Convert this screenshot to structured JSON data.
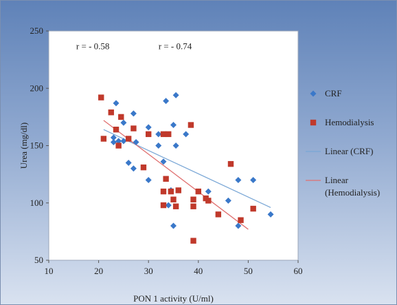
{
  "chart_data": {
    "type": "scatter",
    "xlabel": "PON 1 activity (U/ml)",
    "ylabel": "Urea  (mg/dl)",
    "xlim": [
      10,
      60
    ],
    "ylim": [
      50,
      250
    ],
    "xticks": [
      "10",
      "20",
      "30",
      "40",
      "50",
      "60"
    ],
    "yticks": [
      "50",
      "100",
      "150",
      "200",
      "250"
    ],
    "grid": false,
    "legend_position": "right",
    "annotations": [
      {
        "text": "r = - 0.58",
        "x": 15.5,
        "y": 234,
        "color": "#2e5e9e"
      },
      {
        "text": "r = - 0.74",
        "x": 32,
        "y": 234,
        "color": "#c0392b"
      }
    ],
    "series": [
      {
        "name": "CRF",
        "marker": "diamond",
        "color": "#3a78c9",
        "points": [
          [
            23.5,
            187
          ],
          [
            23,
            157
          ],
          [
            23,
            153
          ],
          [
            24,
            154
          ],
          [
            25,
            170
          ],
          [
            25,
            154
          ],
          [
            27,
            178
          ],
          [
            27.5,
            153
          ],
          [
            26,
            135
          ],
          [
            27,
            130
          ],
          [
            30,
            166
          ],
          [
            30,
            120
          ],
          [
            32,
            160
          ],
          [
            32,
            150
          ],
          [
            33,
            136
          ],
          [
            33.5,
            189
          ],
          [
            34.5,
            111
          ],
          [
            34,
            98
          ],
          [
            35,
            168
          ],
          [
            35.5,
            194
          ],
          [
            35.5,
            150
          ],
          [
            37.5,
            160
          ],
          [
            35,
            80
          ],
          [
            42,
            110
          ],
          [
            46,
            102
          ],
          [
            48,
            120
          ],
          [
            48,
            80
          ],
          [
            51,
            120
          ],
          [
            54.5,
            90
          ]
        ]
      },
      {
        "name": "Hemodialysis",
        "marker": "square",
        "color": "#c0392b",
        "points": [
          [
            20.5,
            192
          ],
          [
            21,
            156
          ],
          [
            22.5,
            179
          ],
          [
            23.5,
            164
          ],
          [
            24,
            150
          ],
          [
            24.5,
            175
          ],
          [
            26,
            156
          ],
          [
            27,
            165
          ],
          [
            29,
            131
          ],
          [
            30,
            160
          ],
          [
            33,
            160
          ],
          [
            34,
            160
          ],
          [
            33.5,
            121
          ],
          [
            33,
            110
          ],
          [
            33,
            98
          ],
          [
            34.5,
            110
          ],
          [
            35,
            103
          ],
          [
            35.5,
            97
          ],
          [
            36,
            111
          ],
          [
            38.5,
            168
          ],
          [
            39,
            103
          ],
          [
            39,
            97
          ],
          [
            40,
            110
          ],
          [
            41.5,
            104
          ],
          [
            42,
            102
          ],
          [
            44,
            90
          ],
          [
            46.5,
            134
          ],
          [
            48.5,
            85
          ],
          [
            51,
            95
          ],
          [
            39,
            67
          ]
        ]
      },
      {
        "name": "Linear (CRF)",
        "type": "line",
        "color": "#7aa7d6",
        "x": [
          21,
          54.5
        ],
        "y": [
          164,
          96
        ]
      },
      {
        "name": "Linear (Hemodialysis)",
        "legend_lines": [
          "Linear",
          "(Hemodialysis)"
        ],
        "type": "line",
        "color": "#e07070",
        "x": [
          21,
          50
        ],
        "y": [
          172,
          77
        ]
      }
    ]
  }
}
